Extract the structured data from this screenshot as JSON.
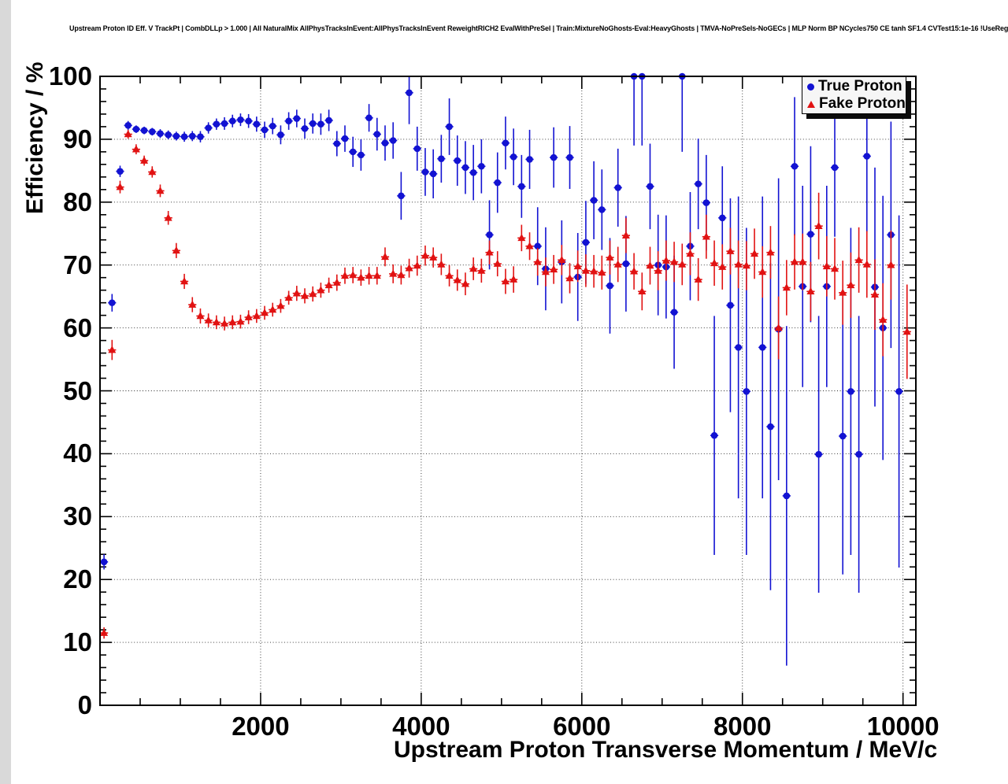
{
  "title": "Upstream Proton ID Eff. V TrackPt | CombDLLp > 1.000 | All NaturalMix AllPhysTracksInEvent:AllPhysTracksInEvent ReweightRICH2 EvalWithPreSel | Train:MixtureNoGhosts-Eval:HeavyGhosts | TMVA-NoPreSels-NoGECs | MLP Norm BP NCycles750 CE tanh SF1.4 CVTest15:1e-16 !UseReg",
  "legend": {
    "items": [
      {
        "label": "True Proton",
        "marker": "circle",
        "color": "#1212d2"
      },
      {
        "label": "Fake Proton",
        "marker": "triangle",
        "color": "#e11212"
      }
    ]
  },
  "chart_data": {
    "type": "scatter",
    "title": "Upstream Proton ID Eff. V TrackPt",
    "xlabel": "Upstream Proton Transverse Momentum / MeV/c",
    "ylabel": "Efficiency / %",
    "xlim": [
      0,
      10160
    ],
    "ylim": [
      0,
      100
    ],
    "x_ticks": [
      2000,
      4000,
      6000,
      8000,
      10000
    ],
    "y_ticks": [
      0,
      10,
      20,
      30,
      40,
      50,
      60,
      70,
      80,
      90,
      100
    ],
    "x_minor_step": 500,
    "y_minor_step": 2,
    "grid": "dotted",
    "x_error_halfwidth": 50,
    "legend_position": "top-right",
    "series": [
      {
        "name": "True Proton",
        "color": "#1212d2",
        "marker": "circle",
        "points": [
          [
            50,
            22.8,
            1.2
          ],
          [
            150,
            64.0,
            1.4
          ],
          [
            250,
            84.9,
            0.9
          ],
          [
            350,
            92.2,
            0.7
          ],
          [
            450,
            91.6,
            0.6
          ],
          [
            550,
            91.4,
            0.6
          ],
          [
            650,
            91.2,
            0.6
          ],
          [
            750,
            90.9,
            0.7
          ],
          [
            850,
            90.7,
            0.7
          ],
          [
            950,
            90.5,
            0.7
          ],
          [
            1050,
            90.4,
            0.8
          ],
          [
            1150,
            90.5,
            0.8
          ],
          [
            1250,
            90.4,
            0.9
          ],
          [
            1350,
            91.8,
            0.9
          ],
          [
            1450,
            92.4,
            0.9
          ],
          [
            1550,
            92.5,
            1.0
          ],
          [
            1650,
            92.9,
            1.0
          ],
          [
            1750,
            93.1,
            1.0
          ],
          [
            1850,
            92.9,
            1.1
          ],
          [
            1950,
            92.4,
            1.2
          ],
          [
            2050,
            91.5,
            1.3
          ],
          [
            2150,
            92.1,
            1.3
          ],
          [
            2250,
            90.7,
            1.5
          ],
          [
            2350,
            92.9,
            1.4
          ],
          [
            2450,
            93.3,
            1.4
          ],
          [
            2550,
            91.7,
            1.6
          ],
          [
            2650,
            92.5,
            1.6
          ],
          [
            2750,
            92.4,
            1.7
          ],
          [
            2850,
            93.0,
            1.7
          ],
          [
            2950,
            89.3,
            2.0
          ],
          [
            3050,
            90.1,
            2.1
          ],
          [
            3150,
            88.0,
            2.4
          ],
          [
            3250,
            87.5,
            2.5
          ],
          [
            3350,
            93.4,
            2.2
          ],
          [
            3450,
            90.8,
            2.6
          ],
          [
            3550,
            89.4,
            2.8
          ],
          [
            3650,
            89.8,
            2.9
          ],
          [
            3750,
            81.0,
            3.8
          ],
          [
            3850,
            97.4,
            5.0
          ],
          [
            3950,
            88.5,
            3.5
          ],
          [
            4050,
            84.8,
            3.8
          ],
          [
            4150,
            84.5,
            3.9
          ],
          [
            4250,
            86.9,
            3.8
          ],
          [
            4350,
            92.0,
            4.5
          ],
          [
            4450,
            86.6,
            4.0
          ],
          [
            4550,
            85.5,
            4.2
          ],
          [
            4650,
            84.7,
            4.4
          ],
          [
            4750,
            85.7,
            4.3
          ],
          [
            4850,
            74.8,
            5.5
          ],
          [
            4950,
            83.1,
            4.8
          ],
          [
            5050,
            89.4,
            4.2
          ],
          [
            5150,
            87.2,
            4.5
          ],
          [
            5250,
            82.5,
            5.0
          ],
          [
            5350,
            86.8,
            4.7
          ],
          [
            5450,
            73.0,
            6.2
          ],
          [
            5550,
            69.4,
            6.6
          ],
          [
            5650,
            87.1,
            4.8
          ],
          [
            5750,
            70.5,
            6.6
          ],
          [
            5850,
            87.1,
            5.0
          ],
          [
            5950,
            68.1,
            7.0
          ],
          [
            6050,
            73.6,
            6.6
          ],
          [
            6150,
            80.3,
            6.2
          ],
          [
            6250,
            78.8,
            6.4
          ],
          [
            6350,
            66.7,
            7.6
          ],
          [
            6450,
            82.3,
            6.2
          ],
          [
            6550,
            70.2,
            7.6
          ],
          [
            6650,
            100,
            11
          ],
          [
            6750,
            100,
            11
          ],
          [
            6850,
            82.5,
            6.8
          ],
          [
            6950,
            70.0,
            8.0
          ],
          [
            7050,
            69.7,
            8.2
          ],
          [
            7150,
            62.5,
            9.0
          ],
          [
            7250,
            100,
            12
          ],
          [
            7350,
            73.0,
            8.6
          ],
          [
            7450,
            82.9,
            7.2
          ],
          [
            7550,
            79.9,
            7.6
          ],
          [
            7650,
            42.9,
            19
          ],
          [
            7750,
            77.5,
            8.2
          ],
          [
            7850,
            63.6,
            17
          ],
          [
            7950,
            56.9,
            24
          ],
          [
            8050,
            49.9,
            26
          ],
          [
            8250,
            56.9,
            24
          ],
          [
            8350,
            44.3,
            26
          ],
          [
            8450,
            59.8,
            24
          ],
          [
            8550,
            33.3,
            27
          ],
          [
            8650,
            85.7,
            11
          ],
          [
            8750,
            66.6,
            16
          ],
          [
            8850,
            74.9,
            14
          ],
          [
            8950,
            39.9,
            22
          ],
          [
            9050,
            66.6,
            16
          ],
          [
            9150,
            85.5,
            11
          ],
          [
            9250,
            42.8,
            22
          ],
          [
            9350,
            49.9,
            26
          ],
          [
            9450,
            39.9,
            22
          ],
          [
            9550,
            87.3,
            12
          ],
          [
            9650,
            66.5,
            19
          ],
          [
            9750,
            60.0,
            21
          ],
          [
            9850,
            74.8,
            18
          ],
          [
            9950,
            49.9,
            28
          ]
        ]
      },
      {
        "name": "Fake Proton",
        "color": "#e11212",
        "marker": "triangle",
        "points": [
          [
            50,
            11.5,
            0.9
          ],
          [
            150,
            56.5,
            1.6
          ],
          [
            250,
            82.4,
            1.0
          ],
          [
            350,
            90.8,
            0.7
          ],
          [
            450,
            88.4,
            0.8
          ],
          [
            550,
            86.6,
            0.8
          ],
          [
            650,
            84.8,
            0.9
          ],
          [
            750,
            81.8,
            1.0
          ],
          [
            850,
            77.5,
            1.1
          ],
          [
            950,
            72.3,
            1.2
          ],
          [
            1050,
            67.4,
            1.2
          ],
          [
            1150,
            63.7,
            1.2
          ],
          [
            1250,
            61.9,
            1.2
          ],
          [
            1350,
            61.2,
            1.1
          ],
          [
            1450,
            60.9,
            1.1
          ],
          [
            1550,
            60.7,
            1.1
          ],
          [
            1650,
            60.9,
            1.1
          ],
          [
            1750,
            61.0,
            1.1
          ],
          [
            1850,
            61.7,
            1.1
          ],
          [
            1950,
            61.9,
            1.1
          ],
          [
            2050,
            62.4,
            1.1
          ],
          [
            2150,
            62.9,
            1.1
          ],
          [
            2250,
            63.5,
            1.1
          ],
          [
            2350,
            64.8,
            1.1
          ],
          [
            2450,
            65.5,
            1.2
          ],
          [
            2550,
            65.1,
            1.2
          ],
          [
            2650,
            65.4,
            1.2
          ],
          [
            2750,
            66.0,
            1.2
          ],
          [
            2850,
            66.8,
            1.2
          ],
          [
            2950,
            67.2,
            1.3
          ],
          [
            3050,
            68.3,
            1.3
          ],
          [
            3150,
            68.4,
            1.3
          ],
          [
            3250,
            68.0,
            1.3
          ],
          [
            3350,
            68.3,
            1.4
          ],
          [
            3450,
            68.3,
            1.4
          ],
          [
            3550,
            71.3,
            1.5
          ],
          [
            3650,
            68.6,
            1.5
          ],
          [
            3750,
            68.4,
            1.5
          ],
          [
            3850,
            69.5,
            1.5
          ],
          [
            3950,
            69.9,
            1.6
          ],
          [
            4050,
            71.5,
            1.6
          ],
          [
            4150,
            71.2,
            1.6
          ],
          [
            4250,
            70.1,
            1.7
          ],
          [
            4350,
            68.3,
            1.7
          ],
          [
            4450,
            67.6,
            1.7
          ],
          [
            4550,
            67.0,
            1.8
          ],
          [
            4650,
            69.4,
            1.8
          ],
          [
            4750,
            69.1,
            1.9
          ],
          [
            4850,
            72.0,
            1.9
          ],
          [
            4950,
            70.2,
            2.0
          ],
          [
            5050,
            67.4,
            2.0
          ],
          [
            5150,
            67.7,
            2.1
          ],
          [
            5250,
            74.3,
            2.1
          ],
          [
            5350,
            73.0,
            2.2
          ],
          [
            5450,
            70.5,
            2.2
          ],
          [
            5550,
            68.9,
            2.3
          ],
          [
            5650,
            69.3,
            2.3
          ],
          [
            5750,
            70.8,
            2.4
          ],
          [
            5850,
            67.9,
            2.4
          ],
          [
            5950,
            69.8,
            2.5
          ],
          [
            6050,
            69.1,
            2.6
          ],
          [
            6150,
            69.0,
            2.6
          ],
          [
            6250,
            68.8,
            2.7
          ],
          [
            6350,
            71.2,
            2.7
          ],
          [
            6450,
            70.1,
            2.8
          ],
          [
            6550,
            74.7,
            2.8
          ],
          [
            6650,
            69.0,
            2.9
          ],
          [
            6750,
            65.8,
            3.0
          ],
          [
            6850,
            69.9,
            3.0
          ],
          [
            6950,
            69.1,
            3.1
          ],
          [
            7050,
            70.7,
            3.2
          ],
          [
            7150,
            70.5,
            3.2
          ],
          [
            7250,
            70.1,
            3.3
          ],
          [
            7350,
            71.8,
            3.4
          ],
          [
            7450,
            67.7,
            3.4
          ],
          [
            7550,
            74.5,
            3.5
          ],
          [
            7650,
            70.3,
            3.6
          ],
          [
            7750,
            69.7,
            3.6
          ],
          [
            7850,
            72.2,
            3.7
          ],
          [
            7950,
            70.1,
            3.8
          ],
          [
            8050,
            69.9,
            3.9
          ],
          [
            8150,
            71.8,
            4.0
          ],
          [
            8250,
            68.9,
            4.1
          ],
          [
            8350,
            72.0,
            4.2
          ],
          [
            8450,
            60.0,
            5.0
          ],
          [
            8550,
            66.4,
            4.4
          ],
          [
            8650,
            70.5,
            4.4
          ],
          [
            8750,
            70.5,
            4.5
          ],
          [
            8850,
            65.8,
            4.7
          ],
          [
            8950,
            76.2,
            5.3
          ],
          [
            9050,
            69.8,
            4.8
          ],
          [
            9150,
            69.4,
            4.9
          ],
          [
            9250,
            65.6,
            5.1
          ],
          [
            9350,
            66.8,
            5.2
          ],
          [
            9450,
            70.8,
            5.2
          ],
          [
            9550,
            70.1,
            5.3
          ],
          [
            9650,
            65.3,
            5.6
          ],
          [
            9750,
            61.3,
            5.8
          ],
          [
            9850,
            70.0,
            5.5
          ],
          [
            10050,
            59.4,
            7.5
          ]
        ]
      }
    ]
  }
}
